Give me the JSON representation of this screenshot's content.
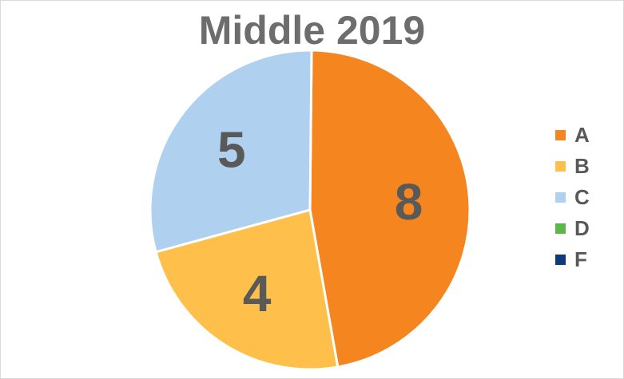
{
  "chart_data": {
    "type": "pie",
    "title": "Middle 2019",
    "categories": [
      "A",
      "B",
      "C",
      "D",
      "F"
    ],
    "values": [
      8,
      4,
      5,
      0,
      0
    ],
    "colors": [
      "#f5861f",
      "#fec04b",
      "#afd0ee",
      "#5bb848",
      "#0f3a78"
    ],
    "data_labels": [
      "8",
      "4",
      "5",
      "",
      ""
    ],
    "legend_position": "right"
  }
}
